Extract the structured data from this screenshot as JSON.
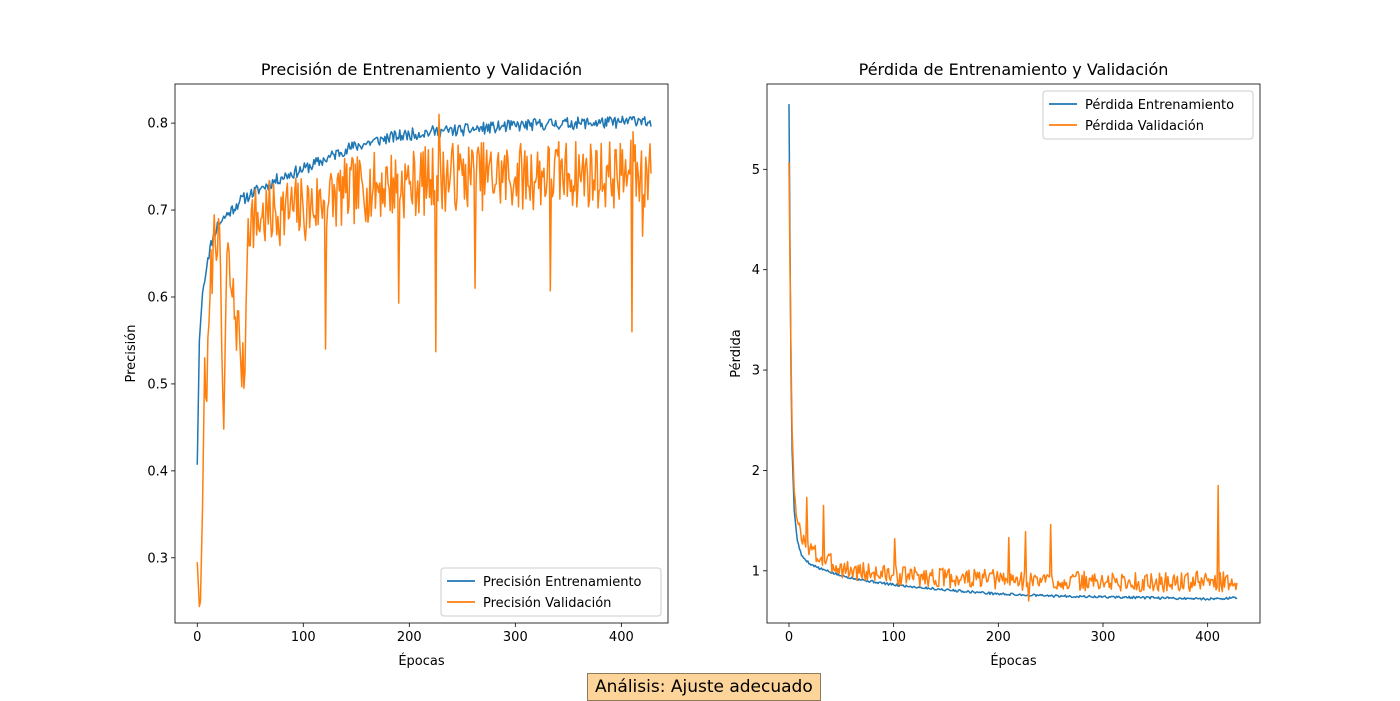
{
  "analysis_label": "Análisis: Ajuste adecuado",
  "colors": {
    "train": "#1f77b4",
    "val": "#ff7f0e"
  },
  "chart_data": [
    {
      "type": "line",
      "title": "Precisión de Entrenamiento y Validación",
      "xlabel": "Épocas",
      "ylabel": "Precisión",
      "xlim": [
        -21,
        444
      ],
      "ylim": [
        0.225,
        0.845
      ],
      "xticks": [
        0,
        100,
        200,
        300,
        400
      ],
      "yticks": [
        0.3,
        0.4,
        0.5,
        0.6,
        0.7,
        0.8
      ],
      "ytick_labels": [
        "0.3",
        "0.4",
        "0.5",
        "0.6",
        "0.7",
        "0.8"
      ],
      "legend_position": "lower right",
      "grid": false,
      "series": [
        {
          "name": "Precisión Entrenamiento",
          "color": "#1f77b4",
          "noise": 0.007,
          "seed": 11,
          "points": [
            [
              0,
              0.407
            ],
            [
              2,
              0.55
            ],
            [
              5,
              0.605
            ],
            [
              10,
              0.645
            ],
            [
              15,
              0.67
            ],
            [
              20,
              0.685
            ],
            [
              30,
              0.697
            ],
            [
              40,
              0.71
            ],
            [
              50,
              0.718
            ],
            [
              60,
              0.725
            ],
            [
              80,
              0.738
            ],
            [
              100,
              0.747
            ],
            [
              120,
              0.758
            ],
            [
              140,
              0.77
            ],
            [
              160,
              0.777
            ],
            [
              180,
              0.783
            ],
            [
              200,
              0.787
            ],
            [
              220,
              0.79
            ],
            [
              250,
              0.792
            ],
            [
              280,
              0.795
            ],
            [
              300,
              0.797
            ],
            [
              330,
              0.799
            ],
            [
              360,
              0.8
            ],
            [
              400,
              0.801
            ],
            [
              420,
              0.805
            ],
            [
              428,
              0.796
            ]
          ]
        },
        {
          "name": "Precisión Validación",
          "color": "#ff7f0e",
          "noise": 0.04,
          "seed": 7,
          "points": [
            [
              0,
              0.295
            ],
            [
              2,
              0.244
            ],
            [
              3,
              0.25
            ],
            [
              5,
              0.36
            ],
            [
              7,
              0.53
            ],
            [
              9,
              0.48
            ],
            [
              12,
              0.6
            ],
            [
              15,
              0.66
            ],
            [
              20,
              0.69
            ],
            [
              25,
              0.448
            ],
            [
              28,
              0.65
            ],
            [
              33,
              0.6
            ],
            [
              40,
              0.55
            ],
            [
              44,
              0.495
            ],
            [
              48,
              0.69
            ],
            [
              60,
              0.69
            ],
            [
              80,
              0.7
            ],
            [
              100,
              0.7
            ],
            [
              120,
              0.71
            ],
            [
              140,
              0.72
            ],
            [
              160,
              0.725
            ],
            [
              180,
              0.73
            ],
            [
              200,
              0.73
            ],
            [
              220,
              0.735
            ],
            [
              250,
              0.74
            ],
            [
              300,
              0.738
            ],
            [
              350,
              0.742
            ],
            [
              400,
              0.74
            ],
            [
              428,
              0.742
            ]
          ],
          "spikes": [
            [
              25,
              0.448
            ],
            [
              44,
              0.495
            ],
            [
              121,
              0.54
            ],
            [
              190,
              0.593
            ],
            [
              225,
              0.537
            ],
            [
              262,
              0.61
            ],
            [
              333,
              0.607
            ],
            [
              410,
              0.56
            ],
            [
              420,
              0.67
            ],
            [
              228,
              0.81
            ],
            [
              411,
              0.79
            ]
          ]
        }
      ]
    },
    {
      "type": "line",
      "title": "Pérdida de Entrenamiento y Validación",
      "xlabel": "Épocas",
      "ylabel": "Pérdida",
      "xlim": [
        -21,
        450
      ],
      "ylim": [
        0.48,
        5.85
      ],
      "xticks": [
        0,
        100,
        200,
        300,
        400
      ],
      "yticks": [
        1,
        2,
        3,
        4,
        5
      ],
      "ytick_labels": [
        "1",
        "2",
        "3",
        "4",
        "5"
      ],
      "legend_position": "upper right",
      "grid": false,
      "series": [
        {
          "name": "Pérdida Entrenamiento",
          "color": "#1f77b4",
          "noise": 0.012,
          "seed": 5,
          "points": [
            [
              0,
              5.65
            ],
            [
              1,
              4.2
            ],
            [
              2,
              2.9
            ],
            [
              3,
              2.2
            ],
            [
              5,
              1.6
            ],
            [
              8,
              1.3
            ],
            [
              12,
              1.15
            ],
            [
              20,
              1.07
            ],
            [
              30,
              1.02
            ],
            [
              50,
              0.95
            ],
            [
              75,
              0.9
            ],
            [
              100,
              0.86
            ],
            [
              150,
              0.81
            ],
            [
              200,
              0.77
            ],
            [
              250,
              0.75
            ],
            [
              300,
              0.74
            ],
            [
              350,
              0.73
            ],
            [
              400,
              0.72
            ],
            [
              428,
              0.73
            ]
          ]
        },
        {
          "name": "Pérdida Validación",
          "color": "#ff7f0e",
          "noise": 0.1,
          "seed": 3,
          "points": [
            [
              0,
              5.07
            ],
            [
              1,
              4.0
            ],
            [
              2,
              3.1
            ],
            [
              3,
              2.4
            ],
            [
              5,
              1.8
            ],
            [
              8,
              1.5
            ],
            [
              12,
              1.3
            ],
            [
              20,
              1.22
            ],
            [
              30,
              1.12
            ],
            [
              45,
              1.05
            ],
            [
              60,
              1.0
            ],
            [
              100,
              0.96
            ],
            [
              150,
              0.93
            ],
            [
              200,
              0.91
            ],
            [
              250,
              0.9
            ],
            [
              300,
              0.89
            ],
            [
              350,
              0.88
            ],
            [
              400,
              0.9
            ],
            [
              428,
              0.88
            ]
          ],
          "spikes": [
            [
              17,
              1.73
            ],
            [
              33,
              1.65
            ],
            [
              101,
              1.32
            ],
            [
              210,
              1.33
            ],
            [
              226,
              1.39
            ],
            [
              250,
              1.46
            ],
            [
              410,
              1.85
            ],
            [
              229,
              0.7
            ]
          ]
        }
      ]
    }
  ]
}
